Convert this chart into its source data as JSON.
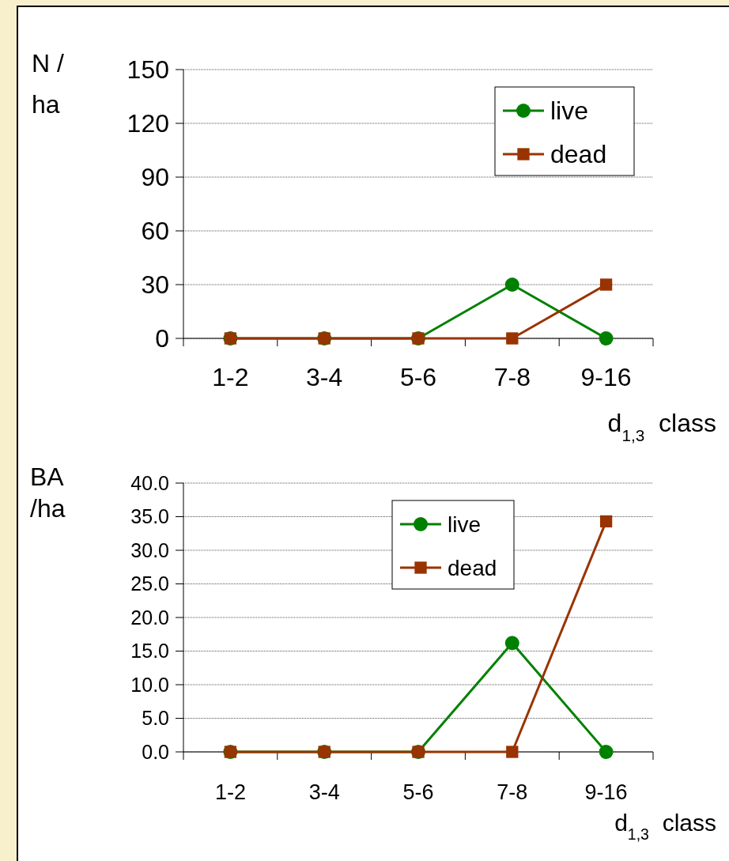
{
  "chart_data": [
    {
      "type": "line",
      "ylabel": "N /\nha",
      "xlabel": "d$_{1,3}$ class",
      "categories": [
        "1-2",
        "3-4",
        "5-6",
        "7-8",
        "9-16"
      ],
      "ylim": [
        0,
        150
      ],
      "yticks": [
        0,
        30,
        60,
        90,
        120,
        150
      ],
      "grid": "y",
      "legend": "top right",
      "series": [
        {
          "name": "live",
          "color": "#008000",
          "marker": "circle",
          "values": [
            0,
            0,
            0,
            30,
            0
          ]
        },
        {
          "name": "dead",
          "color": "#993300",
          "marker": "square",
          "values": [
            0,
            0,
            0,
            0,
            30
          ]
        }
      ]
    },
    {
      "type": "line",
      "ylabel": "BA\n/ha",
      "xlabel": "d$_{1,3}$ class",
      "categories": [
        "1-2",
        "3-4",
        "5-6",
        "7-8",
        "9-16"
      ],
      "ylim": [
        0,
        40
      ],
      "yticks": [
        {
          "value": 0,
          "label": "0.0"
        },
        {
          "value": 5,
          "label": "5.0"
        },
        {
          "value": 10,
          "label": "10.0"
        },
        {
          "value": 15,
          "label": "15.0"
        },
        {
          "value": 20,
          "label": "20.0"
        },
        {
          "value": 25,
          "label": "25.0"
        },
        {
          "value": 30,
          "label": "30.0"
        },
        {
          "value": 35,
          "label": "35.0"
        },
        {
          "value": 40,
          "label": "40.0"
        }
      ],
      "grid": "y",
      "legend": "top right",
      "series": [
        {
          "name": "live",
          "color": "#008000",
          "marker": "circle",
          "values": [
            0,
            0,
            0,
            16.2,
            0
          ]
        },
        {
          "name": "dead",
          "color": "#993300",
          "marker": "square",
          "values": [
            0,
            0,
            0,
            0,
            34.3
          ]
        }
      ]
    }
  ]
}
